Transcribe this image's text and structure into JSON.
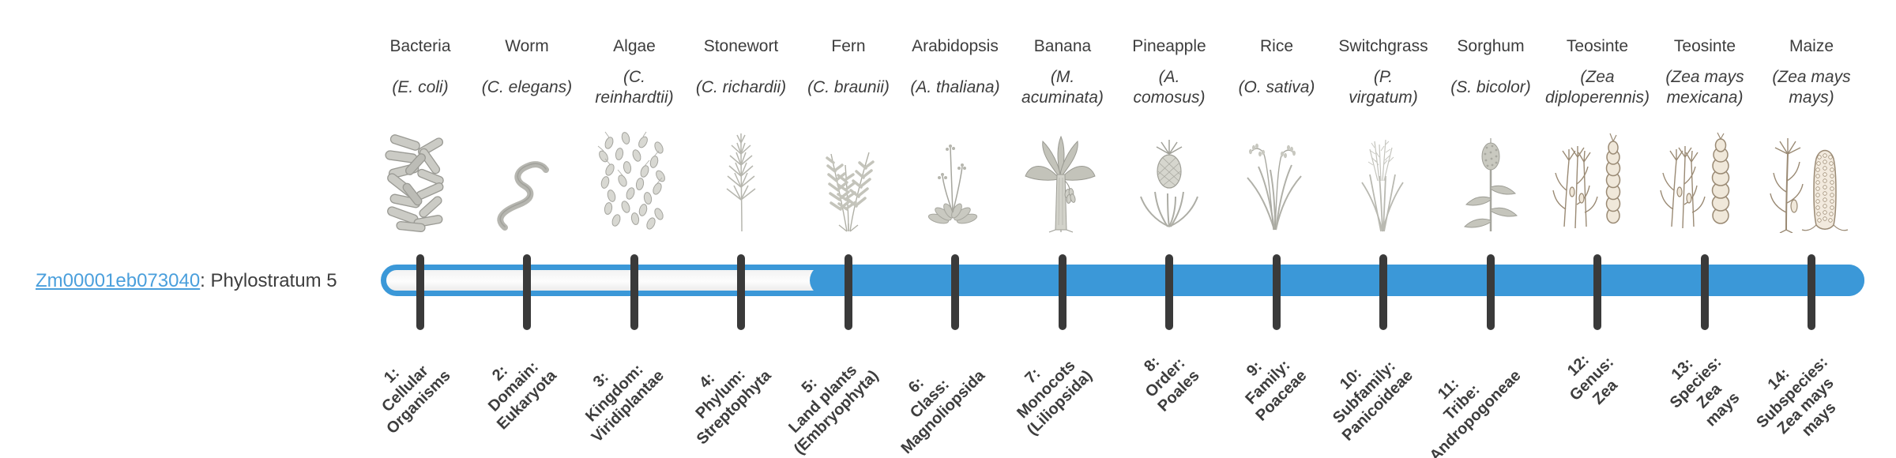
{
  "gene": {
    "id": "Zm00001eb073040",
    "suffix": ": Phylostratum 5"
  },
  "timeline": {
    "fill_start_stratum": 5,
    "strata_count": 14
  },
  "colors": {
    "bar_blue": "#3b98d8",
    "link_blue": "#4a9fdc",
    "tick": "#3a3a3a",
    "text": "#3d3d3d"
  },
  "organisms": [
    {
      "common_name": "Bacteria",
      "scientific_name": "(E. coli)",
      "icon": "bacteria-icon",
      "stratum_label": "1:\nCellular\nOrganisms"
    },
    {
      "common_name": "Worm",
      "scientific_name": "(C. elegans)",
      "icon": "worm-icon",
      "stratum_label": "2:\nDomain:\nEukaryota"
    },
    {
      "common_name": "Algae",
      "scientific_name": "(C.\nreinhardtii)",
      "icon": "algae-icon",
      "stratum_label": "3:\nKingdom:\nViridiplantae"
    },
    {
      "common_name": "Stonewort",
      "scientific_name": "(C. richardii)",
      "icon": "stonewort-icon",
      "stratum_label": "4:\nPhylum:\nStreptophyta"
    },
    {
      "common_name": "Fern",
      "scientific_name": "(C. braunii)",
      "icon": "fern-icon",
      "stratum_label": "5:\nLand plants\n(Embryophyta)"
    },
    {
      "common_name": "Arabidopsis",
      "scientific_name": "(A. thaliana)",
      "icon": "arabidopsis-icon",
      "stratum_label": "6:\nClass:\nMagnoliopsida"
    },
    {
      "common_name": "Banana",
      "scientific_name": "(M.\nacuminata)",
      "icon": "banana-icon",
      "stratum_label": "7:\nMonocots\n(Liliopsida)"
    },
    {
      "common_name": "Pineapple",
      "scientific_name": "(A.\ncomosus)",
      "icon": "pineapple-icon",
      "stratum_label": "8:\nOrder:\nPoales"
    },
    {
      "common_name": "Rice",
      "scientific_name": "(O. sativa)",
      "icon": "rice-icon",
      "stratum_label": "9:\nFamily:\nPoaceae"
    },
    {
      "common_name": "Switchgrass",
      "scientific_name": "(P.\nvirgatum)",
      "icon": "switchgrass-icon",
      "stratum_label": "10:\nSubfamily:\nPanicoideae"
    },
    {
      "common_name": "Sorghum",
      "scientific_name": "(S. bicolor)",
      "icon": "sorghum-icon",
      "stratum_label": "11:\nTribe:\nAndropogoneae"
    },
    {
      "common_name": "Teosinte",
      "scientific_name": "(Zea\ndiploperennis)",
      "icon": "teosinte-diploperennis-icon",
      "stratum_label": "12:\nGenus:\nZea"
    },
    {
      "common_name": "Teosinte",
      "scientific_name": "(Zea mays\nmexicana)",
      "icon": "teosinte-mexicana-icon",
      "stratum_label": "13:\nSpecies:\nZea\nmays"
    },
    {
      "common_name": "Maize",
      "scientific_name": "(Zea mays\nmays)",
      "icon": "maize-icon",
      "stratum_label": "14:\nSubspecies:\nZea mays\nmays"
    }
  ]
}
